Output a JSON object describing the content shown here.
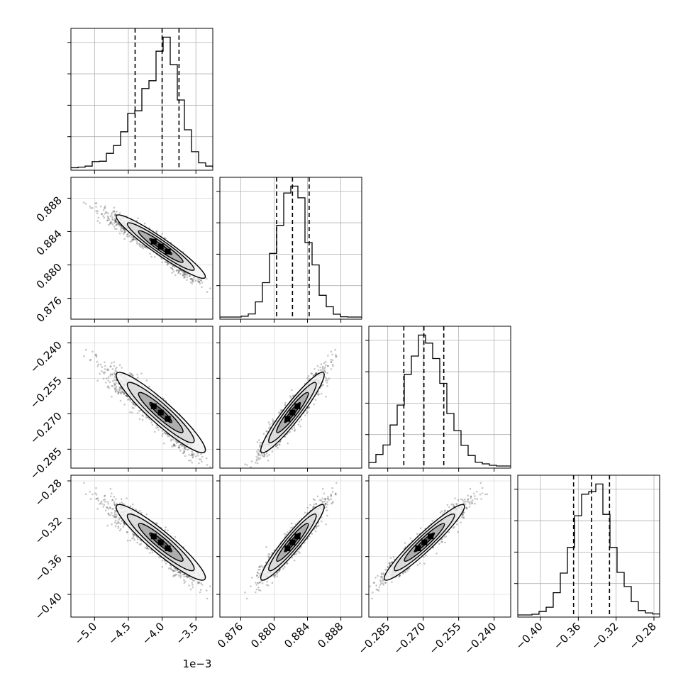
{
  "figure": {
    "offset_label": "1e−3",
    "colors": {
      "axes": "#000000",
      "grid": "#b0b0b0",
      "hist": "#000000",
      "quantile": "#000000",
      "scatter": "#000000"
    }
  },
  "chart_data": {
    "type": "corner",
    "parameters": [
      {
        "range": [
          -5.35,
          -3.25
        ],
        "offset_label": "1e−3",
        "ticks": [
          -5.0,
          -4.5,
          -4.0,
          -3.5
        ],
        "tick_labels": [
          "−5.0",
          "−4.5",
          "−4.0",
          "−3.5"
        ],
        "mean": -4.02,
        "std": 0.33,
        "skew": "left",
        "quantiles": [
          -4.4,
          -4.0,
          -3.75
        ]
      },
      {
        "range": [
          0.8735,
          0.8905
        ],
        "ticks": [
          0.876,
          0.88,
          0.884,
          0.888
        ],
        "tick_labels": [
          "0.876",
          "0.880",
          "0.884",
          "0.888"
        ],
        "mean": 0.8822,
        "std": 0.0019,
        "quantiles": [
          0.8803,
          0.8822,
          0.8842
        ]
      },
      {
        "range": [
          -0.293,
          -0.233
        ],
        "ticks": [
          -0.285,
          -0.27,
          -0.255,
          -0.24
        ],
        "tick_labels": [
          "−0.285",
          "−0.270",
          "−0.255",
          "−0.240"
        ],
        "mean": -0.2695,
        "std": 0.0085,
        "quantiles": [
          -0.2782,
          -0.2697,
          -0.2613
        ]
      },
      {
        "range": [
          -0.424,
          -0.274
        ],
        "ticks": [
          -0.4,
          -0.36,
          -0.32,
          -0.28
        ],
        "tick_labels": [
          "−0.40",
          "−0.36",
          "−0.32",
          "−0.28"
        ],
        "mean": -0.345,
        "std": 0.02,
        "quantiles": [
          -0.365,
          -0.346,
          -0.327
        ]
      }
    ],
    "correlations": [
      [
        1,
        -0.95,
        -0.93,
        -0.93
      ],
      [
        -0.95,
        1,
        0.94,
        0.94
      ],
      [
        -0.93,
        0.94,
        1,
        0.95
      ],
      [
        -0.93,
        0.94,
        0.95,
        1
      ]
    ],
    "hist_bins": 20,
    "quantile_levels": [
      0.16,
      0.5,
      0.84
    ],
    "contour_levels": [
      0.5,
      1.0,
      1.5,
      2.0
    ],
    "grid": true,
    "legend": "none"
  }
}
